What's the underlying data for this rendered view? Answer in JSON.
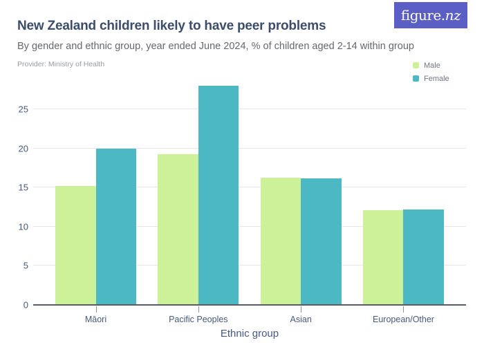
{
  "header": {
    "title": "New Zealand children likely to have peer problems",
    "subtitle": "By gender and ethnic group, year ended June 2024, % of children aged 2-14 within group",
    "provider": "Provider: Ministry of Health"
  },
  "brand": {
    "logo": {
      "figure": "figure.",
      "nz": "nz"
    },
    "logo_bg": "#5A5EC5"
  },
  "legend": [
    {
      "label": "Male",
      "color": "#CCF199"
    },
    {
      "label": "Female",
      "color": "#4BB8C4"
    }
  ],
  "chart_data": {
    "type": "bar",
    "title": "New Zealand children likely to have peer problems",
    "subtitle": "By gender and ethnic group, year ended June 2024, % of children aged 2-14 within group",
    "categories": [
      "Māori",
      "Pacific Peoples",
      "Asian",
      "European/Other"
    ],
    "series": [
      {
        "name": "Male",
        "color": "#CCF199",
        "values": [
          15.2,
          19.3,
          16.3,
          12.1
        ]
      },
      {
        "name": "Female",
        "color": "#4BB8C4",
        "values": [
          20.0,
          28.0,
          16.2,
          12.2
        ]
      }
    ],
    "xlabel": "Ethnic group",
    "ylabel": "",
    "ylim": [
      0,
      29
    ],
    "yticks": [
      0,
      5,
      10,
      15,
      20,
      25
    ],
    "grid": true,
    "legend_position": "top-right"
  }
}
